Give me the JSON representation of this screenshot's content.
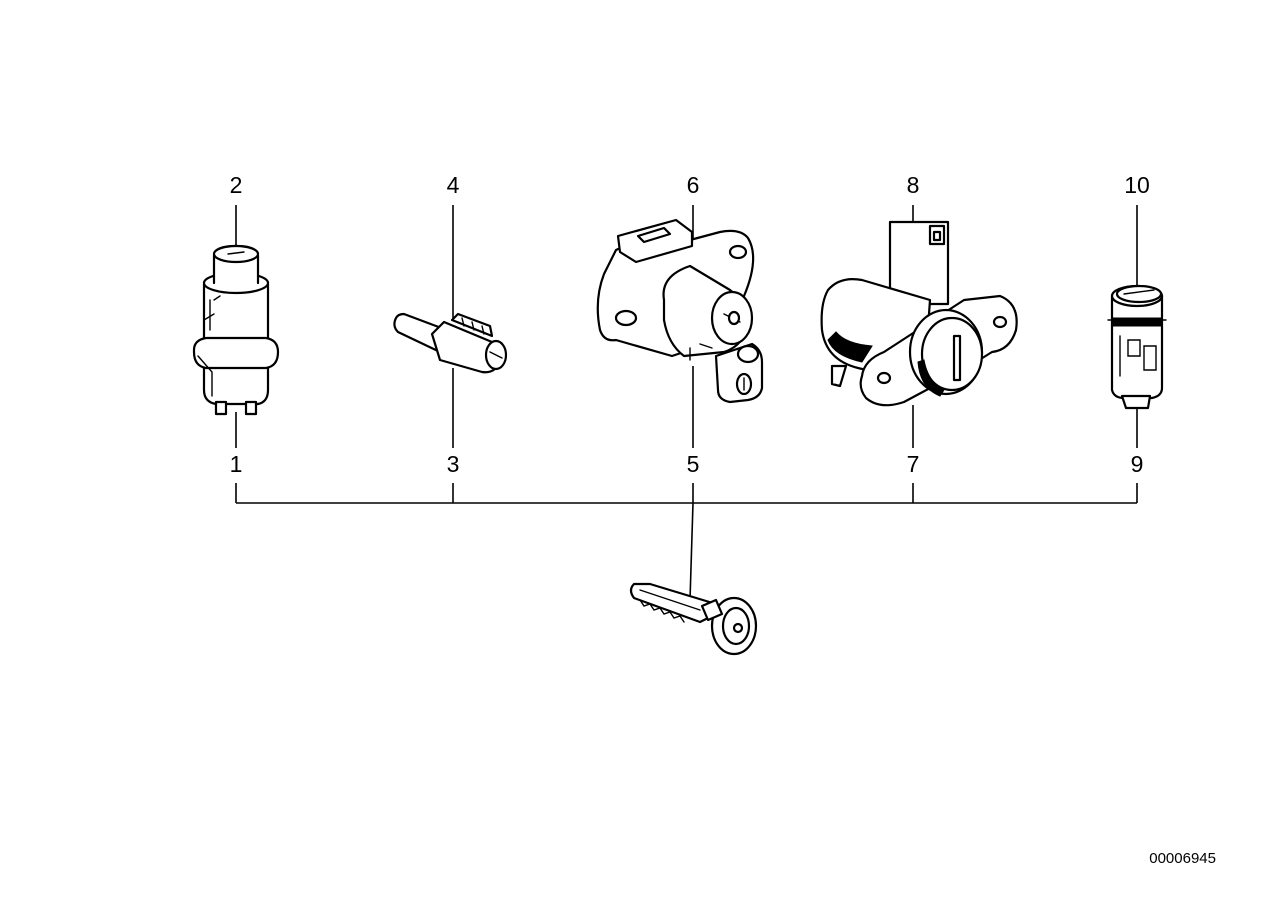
{
  "callouts": {
    "c1": "1",
    "c2": "2",
    "c3": "3",
    "c4": "4",
    "c5": "5",
    "c6": "6",
    "c7": "7",
    "c8": "8",
    "c9": "9",
    "c10": "10"
  },
  "diagram_id": "00006945"
}
